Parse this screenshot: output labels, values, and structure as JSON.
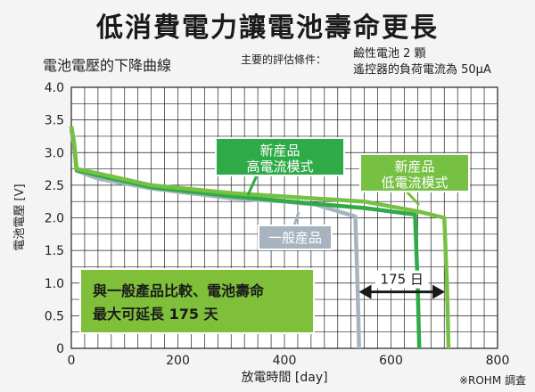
{
  "title": "低消費電力讓電池壽命更長",
  "subtitle": "電池電壓的下降曲線",
  "conditions": {
    "label": "主要的評估條件：",
    "lines": [
      "鹼性電池 2 顆",
      "遙控器的負荷電流為 50µA"
    ]
  },
  "credit": "※ROHM 調査",
  "colors": {
    "new_high": "#2eaa47",
    "new_low": "#76c043",
    "general": "#a7b4c0",
    "note_bg": "#7fbf3a",
    "grid": "#222222",
    "arrow": "#1a1a1a"
  },
  "callouts": {
    "new_high": [
      "新産品",
      "高電流模式"
    ],
    "new_low": [
      "新産品",
      "低電流模式"
    ],
    "general": "一般産品",
    "diff": "175 日",
    "note": [
      "與一般產品比較、電池壽命",
      "最大可延長 175 天"
    ]
  },
  "chart_data": {
    "type": "line",
    "xlabel": "放電時間 [day]",
    "ylabel": "電池電壓 [V]",
    "xlim": [
      0,
      800
    ],
    "ylim": [
      0,
      4.0
    ],
    "xticks": [
      0,
      200,
      400,
      600,
      800
    ],
    "yticks": [
      0,
      0.5,
      1.0,
      1.5,
      2.0,
      2.5,
      3.0,
      3.5,
      4.0
    ],
    "yticklabels": [
      "0",
      "0.5",
      "1.0",
      "1.5",
      "2.0",
      "2.5",
      "3.0",
      "3.5",
      "4.0"
    ],
    "grid": true,
    "series": [
      {
        "name": "一般産品",
        "color_key": "general",
        "points": [
          [
            0,
            3.35
          ],
          [
            5,
            3.1
          ],
          [
            10,
            2.72
          ],
          [
            50,
            2.6
          ],
          [
            150,
            2.45
          ],
          [
            300,
            2.3
          ],
          [
            400,
            2.25
          ],
          [
            460,
            2.2
          ],
          [
            533,
            2.02
          ],
          [
            537,
            1.0
          ],
          [
            540,
            0
          ]
        ]
      },
      {
        "name": "新産品 高電流模式",
        "color_key": "new_high",
        "points": [
          [
            0,
            3.4
          ],
          [
            5,
            3.15
          ],
          [
            10,
            2.73
          ],
          [
            50,
            2.65
          ],
          [
            150,
            2.47
          ],
          [
            300,
            2.33
          ],
          [
            450,
            2.22
          ],
          [
            550,
            2.15
          ],
          [
            645,
            2.05
          ],
          [
            650,
            1.0
          ],
          [
            653,
            0
          ]
        ]
      },
      {
        "name": "新産品 低電流模式",
        "color_key": "new_low",
        "points": [
          [
            0,
            3.4
          ],
          [
            5,
            3.15
          ],
          [
            10,
            2.75
          ],
          [
            50,
            2.68
          ],
          [
            150,
            2.5
          ],
          [
            300,
            2.38
          ],
          [
            450,
            2.3
          ],
          [
            550,
            2.25
          ],
          [
            650,
            2.1
          ],
          [
            700,
            2.0
          ],
          [
            705,
            1.0
          ],
          [
            708,
            0
          ]
        ]
      }
    ],
    "annotation": {
      "x_from": 533,
      "x_to": 708,
      "y": 0.92
    }
  }
}
